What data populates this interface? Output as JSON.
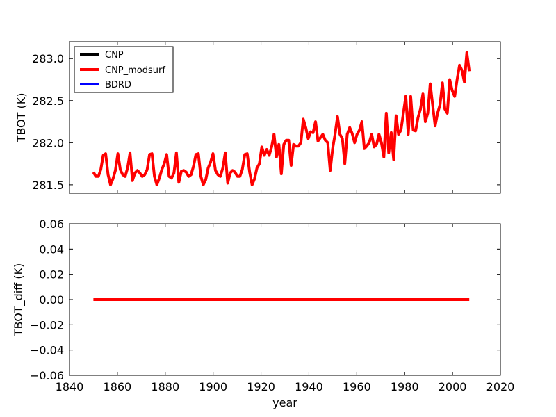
{
  "chart_data": [
    {
      "type": "line",
      "ylabel": "TBOT (K)",
      "xlabel": "",
      "xlim": [
        1840,
        2020
      ],
      "ylim": [
        281.4,
        283.2
      ],
      "yticks": [
        "281.5",
        "282.0",
        "282.5",
        "283.0"
      ],
      "legend_position": "top-left",
      "series": [
        {
          "name": "CNP",
          "color": "#000000",
          "years": [
            1850,
            2007
          ],
          "values": []
        },
        {
          "name": "CNP_modsurf",
          "color": "#ff0000",
          "years": [
            1850,
            2007
          ],
          "values": [
            281.65,
            281.6,
            281.6,
            281.68,
            281.85,
            281.87,
            281.62,
            281.5,
            281.57,
            281.67,
            281.87,
            281.68,
            281.62,
            281.6,
            281.7,
            281.88,
            281.55,
            281.64,
            281.67,
            281.64,
            281.6,
            281.62,
            281.68,
            281.86,
            281.87,
            281.6,
            281.5,
            281.58,
            281.68,
            281.75,
            281.86,
            281.6,
            281.58,
            281.64,
            281.88,
            281.53,
            281.66,
            281.67,
            281.65,
            281.6,
            281.62,
            281.72,
            281.86,
            281.87,
            281.6,
            281.5,
            281.56,
            281.7,
            281.77,
            281.87,
            281.67,
            281.62,
            281.6,
            281.7,
            281.88,
            281.52,
            281.64,
            281.67,
            281.65,
            281.6,
            281.6,
            281.68,
            281.86,
            281.87,
            281.65,
            281.5,
            281.57,
            281.7,
            281.75,
            281.95,
            281.85,
            281.92,
            281.85,
            281.95,
            282.1,
            281.83,
            281.98,
            281.63,
            281.98,
            282.03,
            282.03,
            281.73,
            281.98,
            281.96,
            281.96,
            282.0,
            282.28,
            282.18,
            282.05,
            282.13,
            282.12,
            282.25,
            282.02,
            282.06,
            282.1,
            282.03,
            282.0,
            281.67,
            281.93,
            282.1,
            282.31,
            282.1,
            282.05,
            281.75,
            282.1,
            282.18,
            282.11,
            282.0,
            282.1,
            282.15,
            282.25,
            281.93,
            281.96,
            282.0,
            282.1,
            281.95,
            281.98,
            282.1,
            282.0,
            281.83,
            282.35,
            281.88,
            282.12,
            281.8,
            282.32,
            282.1,
            282.15,
            282.35,
            282.55,
            282.1,
            282.55,
            282.15,
            282.14,
            282.3,
            282.4,
            282.58,
            282.25,
            282.35,
            282.7,
            282.45,
            282.2,
            282.35,
            282.45,
            282.71,
            282.4,
            282.35,
            282.75,
            282.62,
            282.55,
            282.75,
            282.92,
            282.86,
            282.72,
            283.07,
            282.85
          ]
        },
        {
          "name": "BDRD",
          "color": "#0000ff",
          "years": [
            1850,
            2007
          ],
          "values": []
        }
      ]
    },
    {
      "type": "line",
      "ylabel": "TBOT_diff (K)",
      "xlabel": "year",
      "xlim": [
        1840,
        2020
      ],
      "ylim": [
        -0.06,
        0.06
      ],
      "xticks": [
        "1840",
        "1860",
        "1880",
        "1900",
        "1920",
        "1940",
        "1960",
        "1980",
        "2000",
        "2020"
      ],
      "yticks": [
        "−0.06",
        "−0.04",
        "−0.02",
        "0.00",
        "0.02",
        "0.04",
        "0.06"
      ],
      "series": [
        {
          "name": "CNP_modsurf",
          "color": "#ff0000",
          "x": [
            1850,
            2007
          ],
          "values": [
            0.0,
            0.0
          ]
        }
      ]
    }
  ]
}
